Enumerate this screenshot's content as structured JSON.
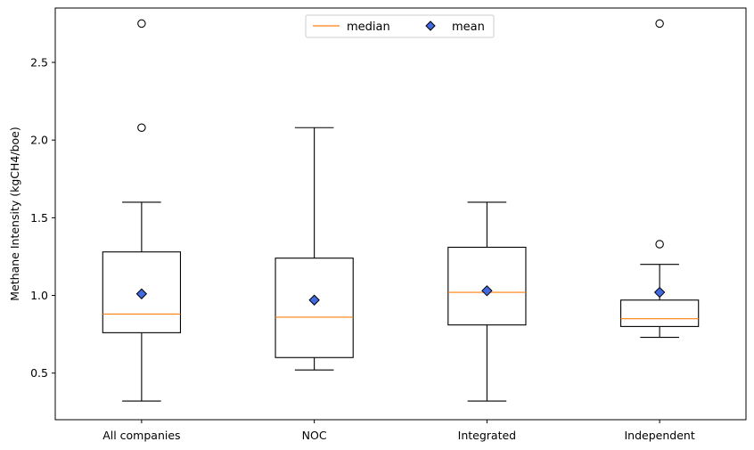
{
  "chart_data": {
    "type": "box",
    "ylabel": "Methane Intensity (kgCH4/boe)",
    "xlabel": "",
    "ylim": [
      0.2,
      2.85
    ],
    "yticks": [
      0.5,
      1.0,
      1.5,
      2.0,
      2.5
    ],
    "ytick_labels": [
      "0.5",
      "1.0",
      "1.5",
      "2.0",
      "2.5"
    ],
    "categories": [
      "All companies",
      "NOC",
      "Integrated",
      "Independent"
    ],
    "boxes": [
      {
        "category": "All companies",
        "whisker_low": 0.32,
        "q1": 0.76,
        "median": 0.88,
        "q3": 1.28,
        "whisker_high": 1.6,
        "mean": 1.01,
        "outliers": [
          2.08,
          2.75
        ]
      },
      {
        "category": "NOC",
        "whisker_low": 0.52,
        "q1": 0.6,
        "median": 0.86,
        "q3": 1.24,
        "whisker_high": 2.08,
        "mean": 0.97,
        "outliers": []
      },
      {
        "category": "Integrated",
        "whisker_low": 0.32,
        "q1": 0.81,
        "median": 1.02,
        "q3": 1.31,
        "whisker_high": 1.6,
        "mean": 1.03,
        "outliers": []
      },
      {
        "category": "Independent",
        "whisker_low": 0.73,
        "q1": 0.8,
        "median": 0.85,
        "q3": 0.97,
        "whisker_high": 1.2,
        "mean": 1.02,
        "outliers": [
          1.33,
          2.75
        ]
      }
    ],
    "legend": {
      "placement": "top-center",
      "entries": [
        {
          "label": "median",
          "marker": "line"
        },
        {
          "label": "mean",
          "marker": "diamond"
        }
      ]
    },
    "colors": {
      "median": "#ff7f0e",
      "mean_fill": "#4169e1",
      "box": "#000000"
    },
    "grid": false
  }
}
